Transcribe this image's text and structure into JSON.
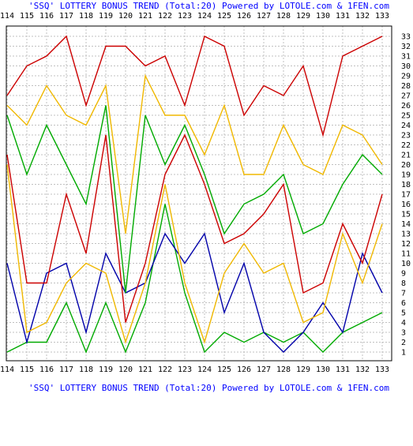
{
  "chart_data": {
    "type": "line",
    "title": "'SSQ' LOTTERY BONUS TREND (Total:20)  Powered by LOTOLE.com & 1FEN.com",
    "x": [
      114,
      115,
      116,
      117,
      118,
      119,
      120,
      121,
      122,
      123,
      124,
      125,
      126,
      127,
      128,
      129,
      130,
      131,
      132,
      133
    ],
    "x_tick_labels": [
      "114",
      "115",
      "116",
      "117",
      "118",
      "119",
      "120",
      "121",
      "122",
      "123",
      "124",
      "125",
      "126",
      "127",
      "128",
      "129",
      "130",
      "131",
      "132",
      "133"
    ],
    "y_tick_labels": [
      "1",
      "2",
      "3",
      "4",
      "5",
      "6",
      "7",
      "8",
      "9",
      "10",
      "11",
      "12",
      "13",
      "14",
      "15",
      "16",
      "17",
      "18",
      "19",
      "20",
      "21",
      "22",
      "23",
      "24",
      "25",
      "26",
      "27",
      "28",
      "29",
      "30",
      "31",
      "32",
      "33"
    ],
    "ylim": [
      1,
      33
    ],
    "grid": true,
    "series": [
      {
        "color": "#00aa00",
        "values": [
          1,
          2,
          2,
          6,
          1,
          6,
          1,
          6,
          16,
          7,
          1,
          3,
          2,
          3,
          2,
          3,
          1,
          3,
          4,
          5
        ]
      },
      {
        "color": "#0000aa",
        "values": [
          10,
          2,
          9,
          10,
          3,
          11,
          7,
          8,
          13,
          10,
          13,
          5,
          10,
          3,
          1,
          3,
          6,
          3,
          11,
          7
        ]
      },
      {
        "color": "#f0b800",
        "values": [
          20,
          3,
          4,
          8,
          10,
          9,
          2,
          8,
          18,
          8,
          2,
          9,
          12,
          9,
          10,
          4,
          5,
          13,
          8,
          14
        ]
      },
      {
        "color": "#cc0000",
        "values": [
          21,
          8,
          8,
          17,
          11,
          23,
          4,
          10,
          19,
          23,
          18,
          12,
          13,
          15,
          18,
          7,
          8,
          14,
          10,
          17
        ]
      },
      {
        "color": "#00aa00",
        "values": [
          25,
          19,
          24,
          20,
          16,
          26,
          7,
          25,
          20,
          24,
          19,
          13,
          16,
          17,
          19,
          13,
          14,
          18,
          21,
          19
        ]
      },
      {
        "color": "#f0b800",
        "values": [
          26,
          24,
          28,
          25,
          24,
          28,
          13,
          29,
          25,
          25,
          21,
          26,
          19,
          19,
          24,
          20,
          19,
          24,
          23,
          20
        ]
      },
      {
        "color": "#cc0000",
        "values": [
          27,
          30,
          31,
          33,
          26,
          32,
          32,
          30,
          31,
          26,
          33,
          32,
          25,
          28,
          27,
          30,
          23,
          31,
          32,
          33
        ]
      }
    ]
  }
}
